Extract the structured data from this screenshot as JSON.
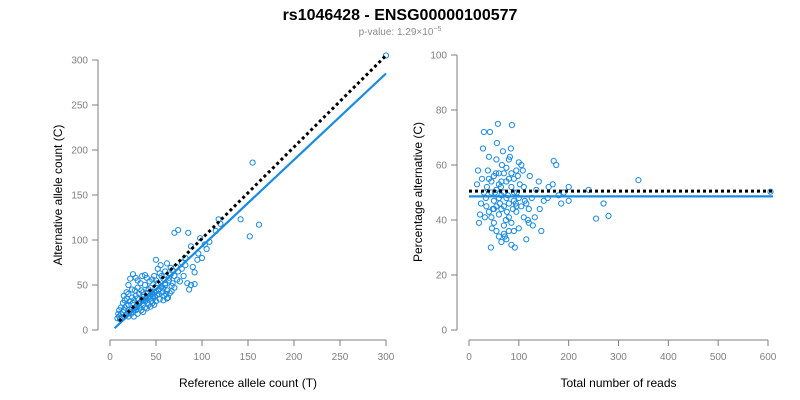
{
  "title": "rs1046428 - ENSG00000100577",
  "subtitle": {
    "prefix": "p-value: 1.29×10",
    "exponent": "−5"
  },
  "colors": {
    "points": "#1a8be0",
    "fit": "#1a8be0",
    "identity": "#000000",
    "axis": "#7f7f7f"
  },
  "chart_data": [
    {
      "type": "scatter",
      "xlabel": "Reference allele count (T)",
      "ylabel": "Alternative allele count (C)",
      "xlim": [
        0,
        300
      ],
      "ylim": [
        0,
        300
      ],
      "xticks": [
        0,
        50,
        100,
        150,
        200,
        250,
        300
      ],
      "yticks": [
        0,
        50,
        100,
        150,
        200,
        250,
        300
      ],
      "grid": false,
      "reference_line": {
        "style": "dotted",
        "x": [
          10,
          300
        ],
        "y": [
          10,
          305
        ]
      },
      "fit_line": {
        "x": [
          5,
          300
        ],
        "y": [
          2,
          285
        ]
      },
      "points": [
        [
          300,
          305
        ],
        [
          155,
          186
        ],
        [
          118,
          123
        ],
        [
          142,
          123
        ],
        [
          152,
          104
        ],
        [
          162,
          117
        ],
        [
          85,
          108
        ],
        [
          88,
          93
        ],
        [
          96,
          85
        ],
        [
          103,
          95
        ],
        [
          98,
          102
        ],
        [
          108,
          98
        ],
        [
          115,
          110
        ],
        [
          120,
          118
        ],
        [
          70,
          108
        ],
        [
          74,
          111
        ],
        [
          78,
          75
        ],
        [
          82,
          80
        ],
        [
          90,
          70
        ],
        [
          92,
          64
        ],
        [
          95,
          78
        ],
        [
          66,
          69
        ],
        [
          68,
          66
        ],
        [
          72,
          70
        ],
        [
          62,
          74
        ],
        [
          60,
          65
        ],
        [
          58,
          57
        ],
        [
          55,
          72
        ],
        [
          50,
          78
        ],
        [
          52,
          68
        ],
        [
          54,
          63
        ],
        [
          56,
          60
        ],
        [
          64,
          58
        ],
        [
          68,
          52
        ],
        [
          70,
          47
        ],
        [
          73,
          56
        ],
        [
          76,
          54
        ],
        [
          80,
          60
        ],
        [
          84,
          52
        ],
        [
          86,
          45
        ],
        [
          88,
          50
        ],
        [
          92,
          51
        ],
        [
          100,
          80
        ],
        [
          105,
          90
        ],
        [
          66,
          62
        ],
        [
          60,
          50
        ],
        [
          62,
          44
        ],
        [
          58,
          46
        ],
        [
          55,
          48
        ],
        [
          52,
          52
        ],
        [
          50,
          55
        ],
        [
          48,
          42
        ],
        [
          46,
          40
        ],
        [
          44,
          47
        ],
        [
          42,
          45
        ],
        [
          40,
          41
        ],
        [
          38,
          50
        ],
        [
          36,
          42
        ],
        [
          35,
          37
        ],
        [
          34,
          44
        ],
        [
          32,
          40
        ],
        [
          30,
          35
        ],
        [
          28,
          38
        ],
        [
          26,
          33
        ],
        [
          25,
          30
        ],
        [
          24,
          36
        ],
        [
          22,
          32
        ],
        [
          20,
          28
        ],
        [
          18,
          27
        ],
        [
          16,
          25
        ],
        [
          15,
          22
        ],
        [
          14,
          20
        ],
        [
          12,
          18
        ],
        [
          10,
          15
        ],
        [
          8,
          13
        ],
        [
          11,
          12
        ],
        [
          13,
          14
        ],
        [
          17,
          16
        ],
        [
          19,
          18
        ],
        [
          21,
          20
        ],
        [
          23,
          22
        ],
        [
          27,
          24
        ],
        [
          29,
          26
        ],
        [
          31,
          29
        ],
        [
          33,
          31
        ],
        [
          37,
          33
        ],
        [
          39,
          35
        ],
        [
          41,
          36
        ],
        [
          43,
          38
        ],
        [
          45,
          32
        ],
        [
          47,
          35
        ],
        [
          49,
          37
        ],
        [
          51,
          39
        ],
        [
          53,
          40
        ],
        [
          57,
          42
        ],
        [
          59,
          38
        ],
        [
          61,
          40
        ],
        [
          63,
          36
        ],
        [
          65,
          41
        ],
        [
          67,
          43
        ],
        [
          20,
          50
        ],
        [
          22,
          57
        ],
        [
          25,
          62
        ],
        [
          28,
          58
        ],
        [
          30,
          55
        ],
        [
          33,
          52
        ],
        [
          35,
          60
        ],
        [
          38,
          61
        ],
        [
          40,
          58
        ],
        [
          43,
          54
        ],
        [
          46,
          56
        ],
        [
          48,
          60
        ],
        [
          15,
          38
        ],
        [
          18,
          42
        ],
        [
          20,
          40
        ],
        [
          24,
          45
        ],
        [
          27,
          44
        ],
        [
          30,
          47
        ],
        [
          12,
          25
        ],
        [
          14,
          30
        ],
        [
          16,
          33
        ],
        [
          18,
          35
        ],
        [
          10,
          22
        ],
        [
          9,
          18
        ],
        [
          26,
          15
        ],
        [
          30,
          18
        ],
        [
          34,
          22
        ],
        [
          38,
          25
        ],
        [
          42,
          28
        ],
        [
          46,
          30
        ],
        [
          50,
          32
        ],
        [
          54,
          34
        ],
        [
          58,
          33
        ],
        [
          62,
          35
        ],
        [
          36,
          20
        ],
        [
          40,
          24
        ],
        [
          44,
          26
        ],
        [
          48,
          28
        ],
        [
          25,
          20
        ],
        [
          28,
          22
        ],
        [
          32,
          25
        ],
        [
          36,
          28
        ],
        [
          20,
          15
        ],
        [
          23,
          18
        ],
        [
          26,
          24
        ],
        [
          29,
          27
        ],
        [
          32,
          30
        ],
        [
          35,
          34
        ],
        [
          38,
          32
        ],
        [
          41,
          30
        ],
        [
          44,
          35
        ],
        [
          47,
          38
        ],
        [
          50,
          43
        ],
        [
          53,
          45
        ],
        [
          56,
          48
        ],
        [
          60,
          52
        ],
        [
          64,
          55
        ],
        [
          67,
          49
        ],
        [
          70,
          60
        ],
        [
          74,
          65
        ],
        [
          78,
          68
        ],
        [
          82,
          72
        ]
      ]
    },
    {
      "type": "scatter",
      "xlabel": "Total number of reads",
      "ylabel": "Percentage alternative (C)",
      "xlim": [
        0,
        600
      ],
      "ylim": [
        0,
        100
      ],
      "xticks": [
        0,
        100,
        200,
        300,
        400,
        500,
        600
      ],
      "yticks": [
        0,
        20,
        40,
        60,
        80,
        100
      ],
      "grid": false,
      "reference_line": {
        "style": "dotted",
        "x": [
          0,
          610
        ],
        "y": [
          50.5,
          50.5
        ]
      },
      "fit_line": {
        "x": [
          0,
          610
        ],
        "y": [
          48.6,
          48.6
        ]
      },
      "points": [
        [
          605,
          50.3
        ],
        [
          340,
          54.5
        ],
        [
          280,
          41.5
        ],
        [
          270,
          46
        ],
        [
          255,
          40.5
        ],
        [
          240,
          51
        ],
        [
          200,
          47
        ],
        [
          200,
          52
        ],
        [
          190,
          50
        ],
        [
          185,
          46
        ],
        [
          180,
          49
        ],
        [
          175,
          60
        ],
        [
          170,
          61.5
        ],
        [
          168,
          53
        ],
        [
          160,
          52
        ],
        [
          158,
          48
        ],
        [
          150,
          47
        ],
        [
          145,
          36
        ],
        [
          142,
          44
        ],
        [
          140,
          54
        ],
        [
          135,
          51
        ],
        [
          132,
          41
        ],
        [
          128,
          38
        ],
        [
          126,
          48
        ],
        [
          122,
          56
        ],
        [
          120,
          44
        ],
        [
          118,
          40
        ],
        [
          115,
          33
        ],
        [
          112,
          47
        ],
        [
          110,
          52
        ],
        [
          108,
          58
        ],
        [
          105,
          60
        ],
        [
          102,
          53
        ],
        [
          100,
          61
        ],
        [
          98,
          56
        ],
        [
          96,
          50
        ],
        [
          94,
          46
        ],
        [
          92,
          30
        ],
        [
          90,
          36
        ],
        [
          88,
          44
        ],
        [
          86,
          74.5
        ],
        [
          84,
          66
        ],
        [
          82,
          63
        ],
        [
          80,
          55
        ],
        [
          78,
          49
        ],
        [
          76,
          43
        ],
        [
          74,
          40
        ],
        [
          72,
          34
        ],
        [
          70,
          38
        ],
        [
          68,
          65
        ],
        [
          66,
          60
        ],
        [
          64,
          52
        ],
        [
          62,
          46
        ],
        [
          60,
          42
        ],
        [
          58,
          75
        ],
        [
          56,
          68
        ],
        [
          54,
          57
        ],
        [
          52,
          50
        ],
        [
          50,
          47
        ],
        [
          48,
          44
        ],
        [
          46,
          37
        ],
        [
          44,
          30
        ],
        [
          42,
          72
        ],
        [
          40,
          63
        ],
        [
          38,
          58
        ],
        [
          36,
          52
        ],
        [
          34,
          48
        ],
        [
          32,
          41
        ],
        [
          30,
          72
        ],
        [
          28,
          66
        ],
        [
          26,
          55
        ],
        [
          24,
          46
        ],
        [
          22,
          42
        ],
        [
          20,
          39
        ],
        [
          18,
          58
        ],
        [
          16,
          53
        ],
        [
          55,
          62
        ],
        [
          60,
          57
        ],
        [
          65,
          49
        ],
        [
          70,
          45
        ],
        [
          75,
          54
        ],
        [
          80,
          41
        ],
        [
          85,
          39
        ],
        [
          90,
          47
        ],
        [
          95,
          43
        ],
        [
          100,
          37
        ],
        [
          105,
          45
        ],
        [
          110,
          41
        ],
        [
          115,
          46
        ],
        [
          120,
          39
        ],
        [
          45,
          54
        ],
        [
          50,
          56
        ],
        [
          55,
          51
        ],
        [
          60,
          53
        ],
        [
          65,
          44
        ],
        [
          70,
          50
        ],
        [
          75,
          48
        ],
        [
          80,
          46
        ],
        [
          85,
          52
        ],
        [
          90,
          55
        ],
        [
          95,
          58
        ],
        [
          100,
          48
        ],
        [
          30,
          50
        ],
        [
          35,
          45
        ],
        [
          40,
          43
        ],
        [
          45,
          41
        ],
        [
          50,
          39
        ],
        [
          55,
          36
        ],
        [
          60,
          34
        ],
        [
          65,
          32
        ],
        [
          70,
          35
        ],
        [
          75,
          33
        ],
        [
          80,
          36
        ],
        [
          85,
          31
        ],
        [
          40,
          55
        ],
        [
          45,
          50
        ],
        [
          50,
          44
        ],
        [
          55,
          45
        ],
        [
          60,
          48
        ],
        [
          65,
          54
        ],
        [
          70,
          57
        ],
        [
          75,
          59
        ],
        [
          80,
          62
        ],
        [
          85,
          57
        ],
        [
          90,
          50
        ],
        [
          95,
          45
        ]
      ]
    }
  ]
}
